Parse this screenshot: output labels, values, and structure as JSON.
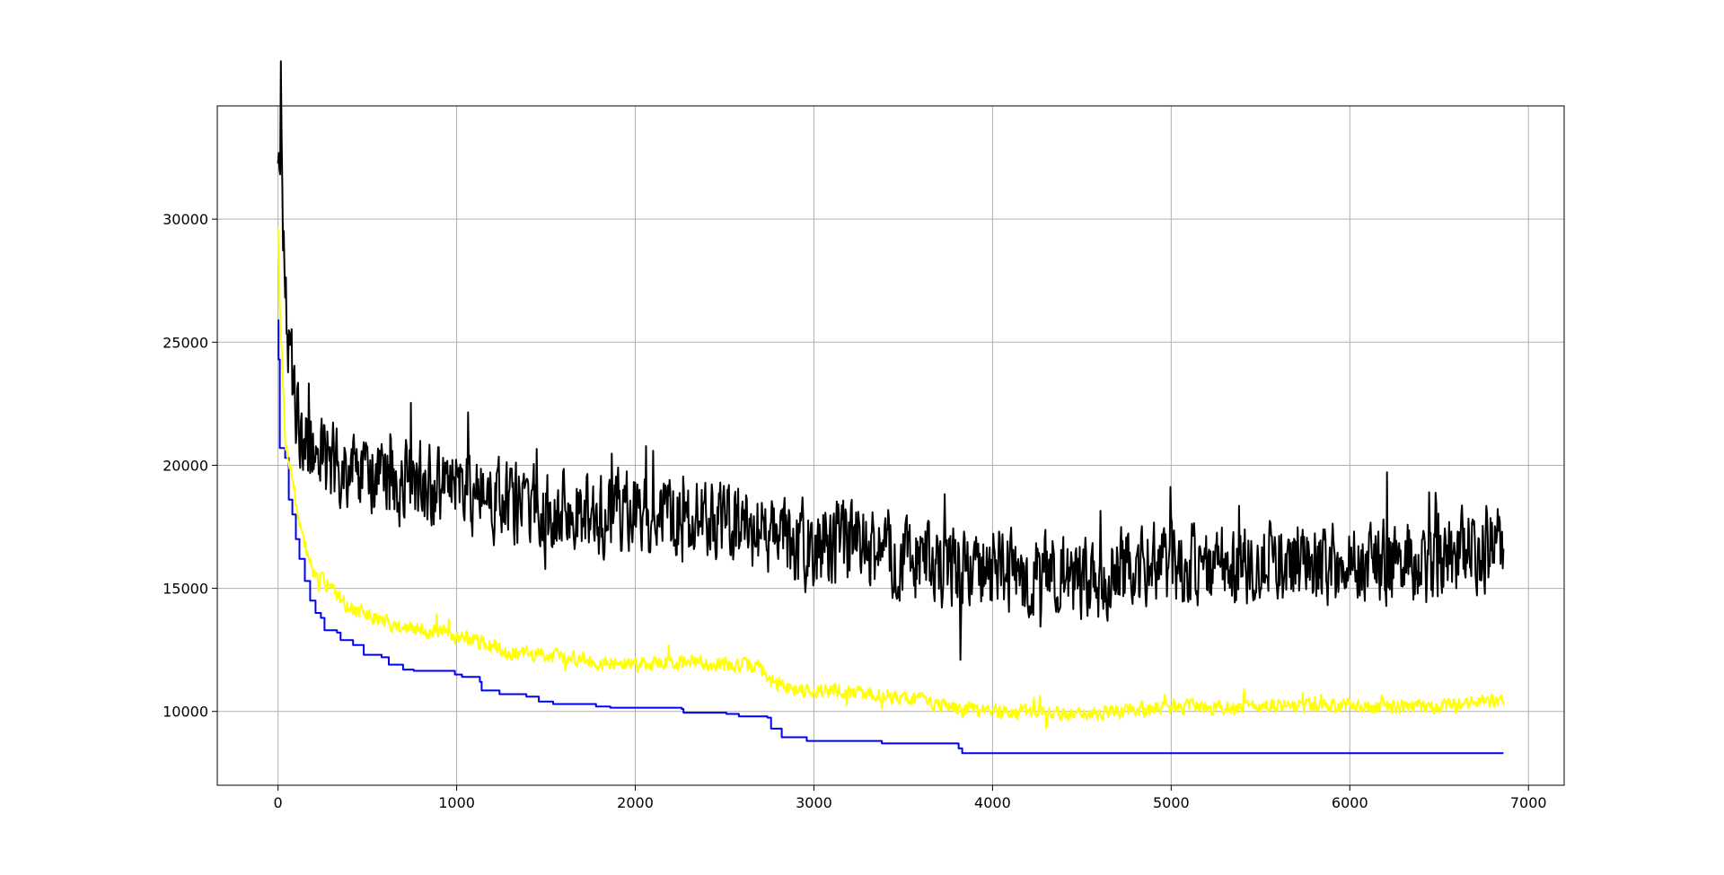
{
  "chart_data": {
    "type": "line",
    "title": "",
    "xlabel": "",
    "ylabel": "",
    "xlim": [
      -340,
      7200
    ],
    "ylim": [
      7000,
      34600
    ],
    "grid": true,
    "xticks": [
      0,
      1000,
      2000,
      3000,
      4000,
      5000,
      6000,
      7000
    ],
    "yticks": [
      10000,
      15000,
      20000,
      25000,
      30000
    ],
    "xtick_labels": [
      "0",
      "1000",
      "2000",
      "3000",
      "4000",
      "5000",
      "6000",
      "7000"
    ],
    "ytick_labels": [
      "10000",
      "15000",
      "20000",
      "25000",
      "30000"
    ],
    "x_max": 6860,
    "series": [
      {
        "color": "#0000ff",
        "style": "step",
        "points": [
          [
            0,
            25900
          ],
          [
            3,
            24300
          ],
          [
            10,
            20700
          ],
          [
            40,
            20300
          ],
          [
            60,
            18600
          ],
          [
            80,
            18000
          ],
          [
            100,
            17000
          ],
          [
            120,
            16200
          ],
          [
            150,
            15300
          ],
          [
            180,
            14500
          ],
          [
            210,
            14000
          ],
          [
            240,
            13800
          ],
          [
            260,
            13300
          ],
          [
            330,
            13200
          ],
          [
            350,
            12900
          ],
          [
            420,
            12700
          ],
          [
            480,
            12300
          ],
          [
            580,
            12200
          ],
          [
            620,
            11900
          ],
          [
            700,
            11700
          ],
          [
            760,
            11650
          ],
          [
            990,
            11500
          ],
          [
            1030,
            11400
          ],
          [
            1130,
            11200
          ],
          [
            1140,
            10850
          ],
          [
            1240,
            10700
          ],
          [
            1390,
            10600
          ],
          [
            1460,
            10400
          ],
          [
            1540,
            10300
          ],
          [
            1780,
            10200
          ],
          [
            1860,
            10150
          ],
          [
            2260,
            10100
          ],
          [
            2270,
            9950
          ],
          [
            2510,
            9900
          ],
          [
            2580,
            9800
          ],
          [
            2740,
            9750
          ],
          [
            2760,
            9300
          ],
          [
            2820,
            8950
          ],
          [
            2960,
            8800
          ],
          [
            3380,
            8700
          ],
          [
            3810,
            8500
          ],
          [
            3830,
            8300
          ],
          [
            6860,
            8300
          ]
        ]
      },
      {
        "color": "#ffff00",
        "style": "noisy",
        "seed": 7,
        "noise": 350,
        "points": [
          [
            0,
            29800
          ],
          [
            10,
            26500
          ],
          [
            40,
            21000
          ],
          [
            80,
            19500
          ],
          [
            120,
            17700
          ],
          [
            160,
            16500
          ],
          [
            200,
            15600
          ],
          [
            300,
            15000
          ],
          [
            400,
            14200
          ],
          [
            500,
            13900
          ],
          [
            700,
            13400
          ],
          [
            900,
            13200
          ],
          [
            1100,
            12900
          ],
          [
            1300,
            12400
          ],
          [
            1500,
            12300
          ],
          [
            1700,
            12100
          ],
          [
            1900,
            11900
          ],
          [
            2100,
            12000
          ],
          [
            2300,
            12000
          ],
          [
            2500,
            11900
          ],
          [
            2700,
            11800
          ],
          [
            2760,
            11200
          ],
          [
            2900,
            10900
          ],
          [
            3200,
            10800
          ],
          [
            3600,
            10500
          ],
          [
            3800,
            10100
          ],
          [
            4100,
            10000
          ],
          [
            4400,
            9900
          ],
          [
            4700,
            10000
          ],
          [
            5000,
            10200
          ],
          [
            5500,
            10200
          ],
          [
            6000,
            10200
          ],
          [
            6500,
            10200
          ],
          [
            6860,
            10500
          ]
        ]
      },
      {
        "color": "#000000",
        "style": "noisy",
        "seed": 42,
        "noise": 2000,
        "points": [
          [
            0,
            33000
          ],
          [
            20,
            31500
          ],
          [
            40,
            26500
          ],
          [
            80,
            23500
          ],
          [
            120,
            21500
          ],
          [
            200,
            20500
          ],
          [
            300,
            20000
          ],
          [
            500,
            19500
          ],
          [
            800,
            19000
          ],
          [
            1000,
            19000
          ],
          [
            1200,
            18500
          ],
          [
            1500,
            18200
          ],
          [
            1800,
            18000
          ],
          [
            2000,
            18000
          ],
          [
            2200,
            17800
          ],
          [
            2500,
            17600
          ],
          [
            2700,
            17200
          ],
          [
            2900,
            16800
          ],
          [
            3200,
            16700
          ],
          [
            3500,
            16300
          ],
          [
            3800,
            15800
          ],
          [
            4000,
            15700
          ],
          [
            4300,
            15500
          ],
          [
            4600,
            15500
          ],
          [
            5000,
            16000
          ],
          [
            5500,
            16000
          ],
          [
            6000,
            16000
          ],
          [
            6500,
            16000
          ],
          [
            6860,
            17000
          ]
        ]
      }
    ]
  }
}
